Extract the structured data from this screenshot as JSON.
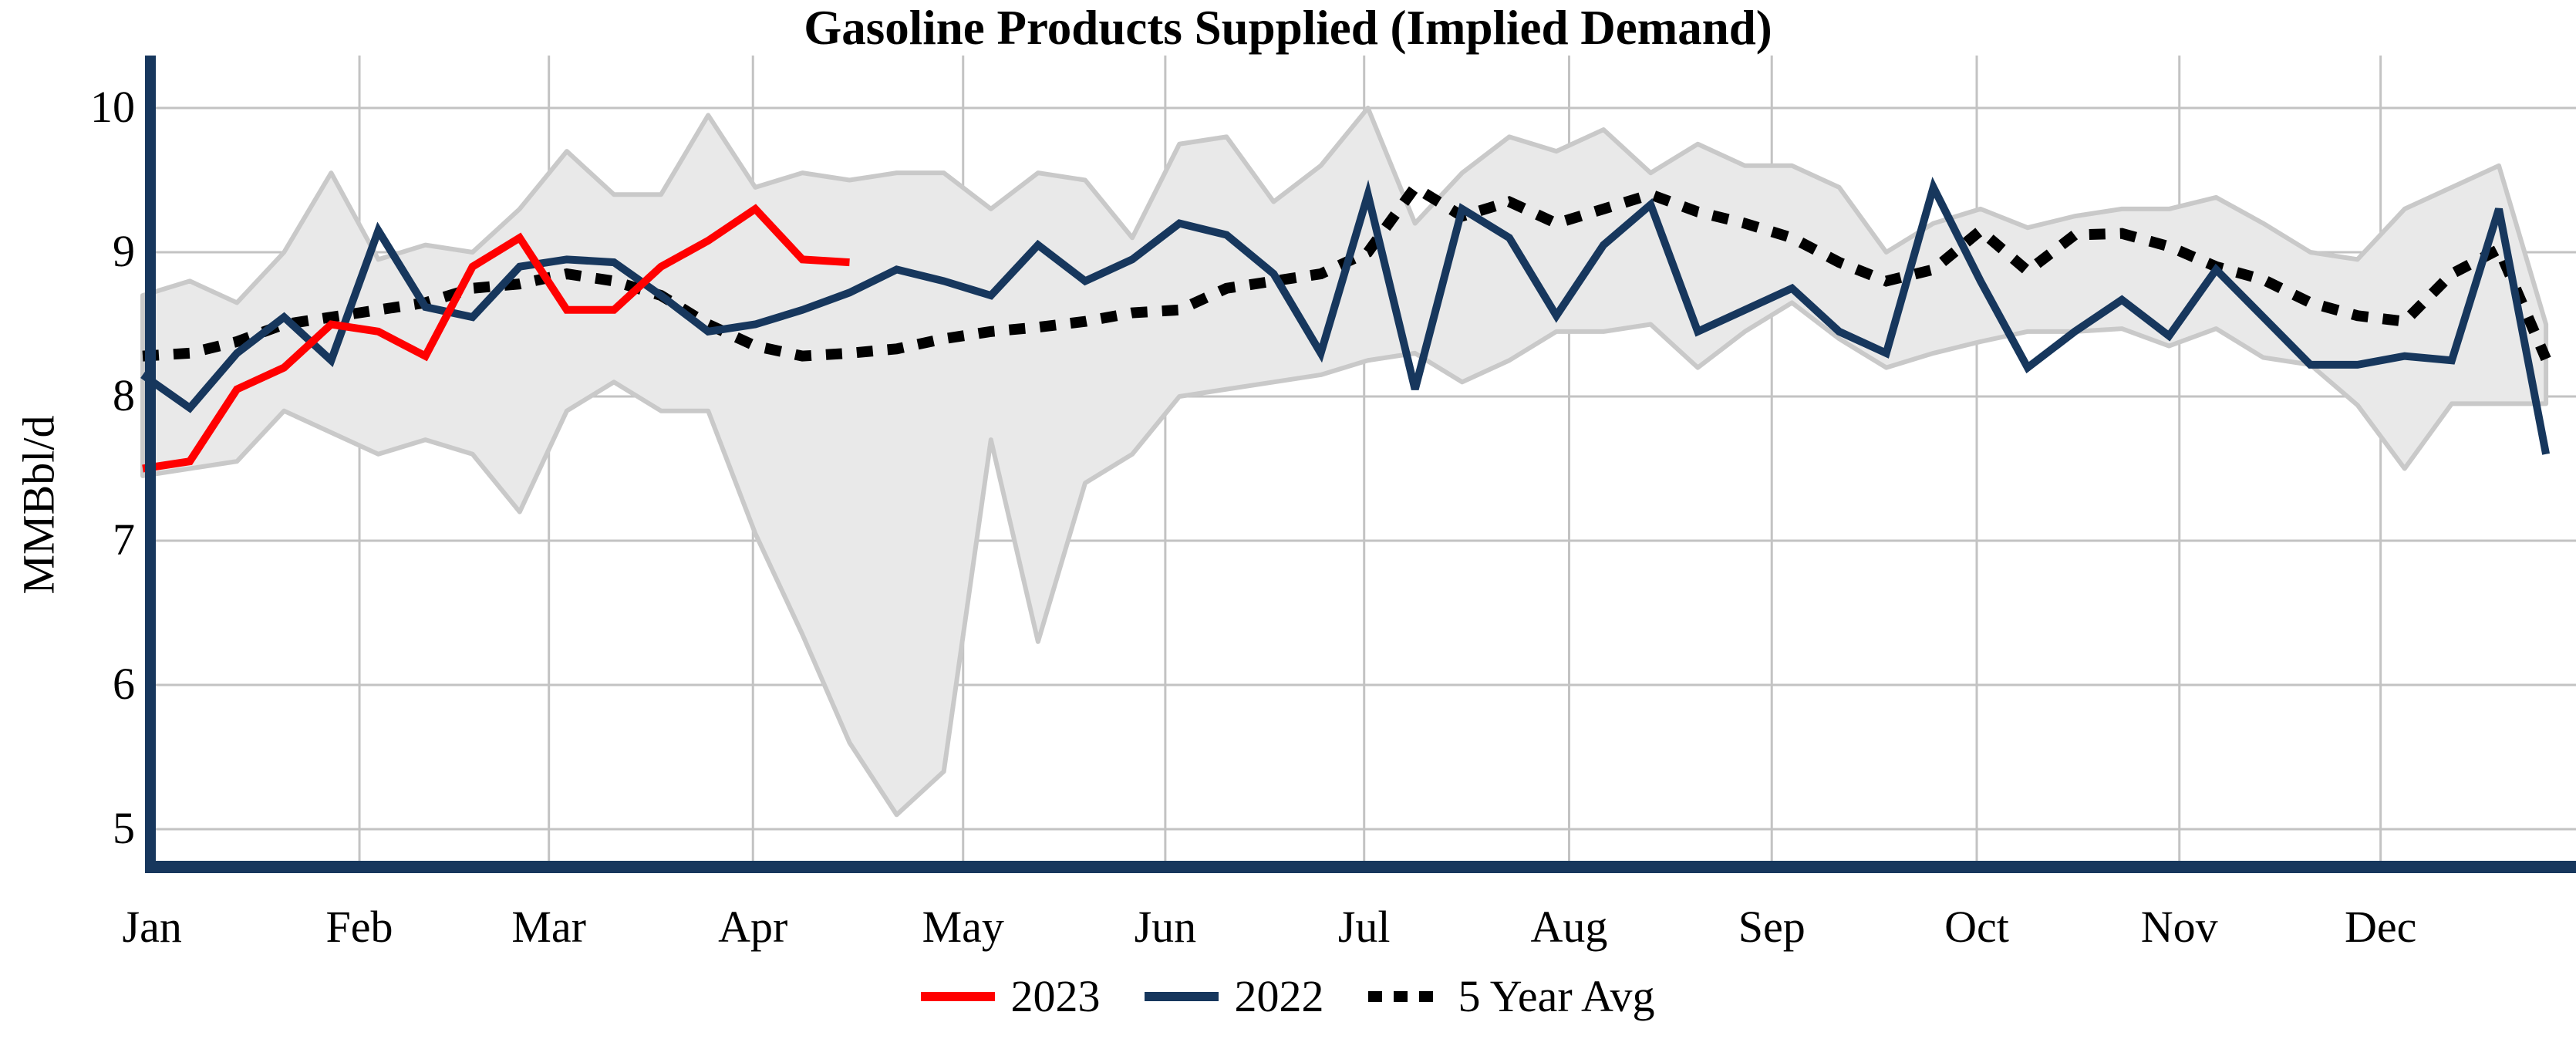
{
  "title": "Gasoline Products Supplied (Implied Demand)",
  "y_axis": {
    "label": "MMBbl/d",
    "ticks": [
      10,
      9,
      8,
      7,
      6,
      5
    ],
    "min": 5,
    "max": 10
  },
  "x_axis": {
    "months": [
      "Jan",
      "Feb",
      "Mar",
      "Apr",
      "May",
      "Jun",
      "Jul",
      "Aug",
      "Sep",
      "Oct",
      "Nov",
      "Dec"
    ],
    "month_week_positions": [
      0.2,
      4.6,
      8.62,
      12.95,
      17.41,
      21.7,
      25.92,
      30.27,
      34.57,
      38.92,
      43.22,
      47.49
    ]
  },
  "legend": {
    "items": [
      {
        "label": "2023",
        "color": "#ff0000",
        "style": "solid"
      },
      {
        "label": "2022",
        "color": "#17375d",
        "style": "solid"
      },
      {
        "label": "5 Year Avg",
        "color": "#000000",
        "style": "dashed"
      }
    ]
  },
  "colors": {
    "red_2023": "#ff0000",
    "navy_2022": "#17375d",
    "five_year_avg": "#000000",
    "band_fill": "#e9e9e9",
    "band_border": "#c9c9c9",
    "gridline": "#c3c3c3",
    "spine": "#17375d"
  },
  "chart_data": {
    "type": "line",
    "title": "Gasoline Products Supplied (Implied Demand)",
    "ylabel": "MMBbl/d",
    "xlabel": "",
    "ylim": [
      5,
      10
    ],
    "x_unit": "week_of_year",
    "weeks": 52,
    "grid": true,
    "legend_position": "bottom",
    "series": [
      {
        "name": "2023",
        "color": "#ff0000",
        "style": "solid",
        "values": [
          7.5,
          7.55,
          8.05,
          8.2,
          8.5,
          8.45,
          8.28,
          8.9,
          9.1,
          8.6,
          8.6,
          8.9,
          9.08,
          9.3,
          8.95,
          8.93
        ]
      },
      {
        "name": "2022",
        "color": "#17375d",
        "style": "solid",
        "values": [
          8.15,
          7.92,
          8.3,
          8.55,
          8.25,
          9.15,
          8.62,
          8.55,
          8.9,
          8.95,
          8.93,
          8.7,
          8.45,
          8.5,
          8.6,
          8.72,
          8.88,
          8.8,
          8.7,
          9.05,
          8.8,
          8.95,
          9.2,
          9.12,
          8.85,
          8.3,
          9.4,
          8.05,
          9.3,
          9.1,
          8.56,
          9.05,
          9.33,
          8.45,
          8.6,
          8.75,
          8.45,
          8.3,
          9.45,
          8.8,
          8.2,
          8.45,
          8.67,
          8.42,
          8.88,
          8.55,
          8.22,
          8.22,
          8.28,
          8.25,
          9.3,
          7.6
        ]
      },
      {
        "name": "5 Year Avg",
        "color": "#000000",
        "style": "dashed",
        "values": [
          8.28,
          8.3,
          8.38,
          8.5,
          8.55,
          8.6,
          8.65,
          8.75,
          8.78,
          8.85,
          8.8,
          8.7,
          8.5,
          8.35,
          8.28,
          8.3,
          8.33,
          8.4,
          8.45,
          8.48,
          8.52,
          8.58,
          8.6,
          8.75,
          8.8,
          8.85,
          9.0,
          9.45,
          9.25,
          9.35,
          9.2,
          9.3,
          9.4,
          9.28,
          9.2,
          9.1,
          8.93,
          8.8,
          8.88,
          9.15,
          8.87,
          9.12,
          9.13,
          9.04,
          8.9,
          8.81,
          8.65,
          8.56,
          8.52,
          8.85,
          9.02,
          8.26
        ]
      }
    ],
    "band": {
      "name": "5 Year Range",
      "fill": "#e9e9e9",
      "border": "#c9c9c9",
      "top": [
        8.7,
        8.8,
        8.65,
        9.0,
        9.55,
        8.95,
        9.05,
        9.0,
        9.3,
        9.7,
        9.4,
        9.4,
        9.95,
        9.45,
        9.55,
        9.5,
        9.55,
        9.55,
        9.3,
        9.55,
        9.5,
        9.1,
        9.75,
        9.8,
        9.35,
        9.6,
        10.0,
        9.2,
        9.55,
        9.8,
        9.7,
        9.85,
        9.55,
        9.75,
        9.6,
        9.6,
        9.45,
        9.0,
        9.2,
        9.3,
        9.17,
        9.25,
        9.3,
        9.3,
        9.38,
        9.2,
        9.0,
        8.95,
        9.3,
        9.45,
        9.6,
        8.5
      ],
      "bottom": [
        7.45,
        7.5,
        7.55,
        7.9,
        7.75,
        7.6,
        7.7,
        7.6,
        7.2,
        7.9,
        8.1,
        7.9,
        7.9,
        7.05,
        6.35,
        5.6,
        5.1,
        5.4,
        7.7,
        6.3,
        7.4,
        7.6,
        8.0,
        8.05,
        8.1,
        8.15,
        8.25,
        8.3,
        8.1,
        8.25,
        8.45,
        8.45,
        8.5,
        8.2,
        8.45,
        8.65,
        8.4,
        8.2,
        8.3,
        8.38,
        8.45,
        8.45,
        8.47,
        8.35,
        8.47,
        8.27,
        8.22,
        7.94,
        7.5,
        7.95,
        7.95,
        7.95
      ]
    }
  }
}
